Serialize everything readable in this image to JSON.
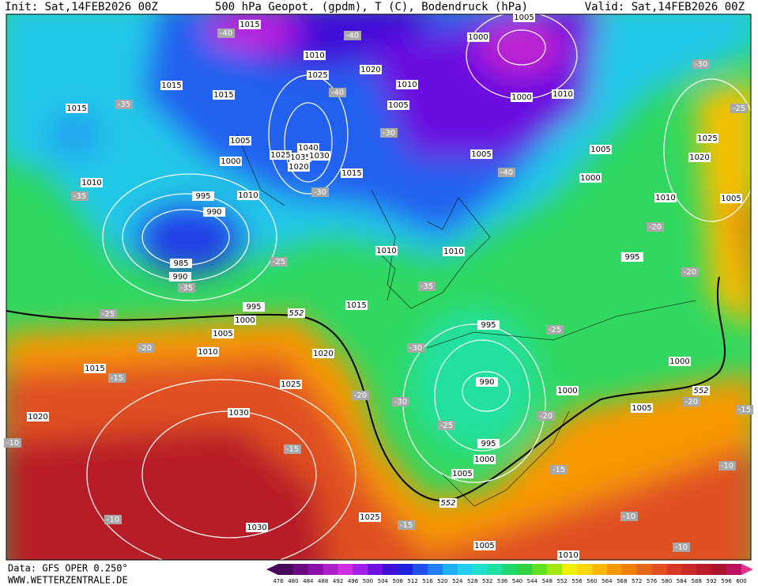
{
  "header": {
    "init": "Init: Sat,14FEB2026 00Z",
    "title": "500 hPa Geopot. (gpdm), T (C), Bodendruck (hPa)",
    "valid": "Valid: Sat,14FEB2026 00Z"
  },
  "footer": {
    "data": "Data: GFS OPER 0.250°",
    "site": "WWW.WETTERZENTRALE.DE"
  },
  "legend": {
    "labels": [
      476,
      480,
      484,
      488,
      492,
      496,
      500,
      504,
      508,
      512,
      516,
      520,
      524,
      528,
      532,
      536,
      540,
      544,
      548,
      552,
      556,
      560,
      564,
      568,
      572,
      576,
      580,
      584,
      588,
      592,
      596,
      600
    ],
    "colors": [
      "#4a0a5a",
      "#6a0a80",
      "#8a10a8",
      "#b020c8",
      "#d030e0",
      "#a020e8",
      "#7010e0",
      "#4010d8",
      "#2020e0",
      "#2050f0",
      "#2080f8",
      "#20b0f8",
      "#20d0f0",
      "#20e0d0",
      "#20e0a0",
      "#20d870",
      "#30d040",
      "#60e020",
      "#a0e810",
      "#f0f000",
      "#f8d800",
      "#f8b800",
      "#f89800",
      "#f08000",
      "#e86818",
      "#e05020",
      "#d83828",
      "#c82828",
      "#b81c28",
      "#a81428",
      "#c01060",
      "#e03090"
    ]
  },
  "pressure_labels": [
    1015,
    1010,
    1020,
    1025,
    1010,
    1000,
    1005,
    1000,
    1010,
    1015,
    1015,
    1015,
    1005,
    1005,
    1000,
    1040,
    1035,
    1030,
    1020,
    1025,
    1015,
    1005,
    1005,
    1000,
    1025,
    1020,
    1010,
    1010,
    995,
    990,
    1010,
    1005,
    1010,
    1010,
    985,
    990,
    995,
    1015,
    995,
    1000,
    1005,
    995,
    1010,
    1020,
    1000,
    1015,
    990,
    1025,
    1000,
    1005,
    1030,
    1020,
    995,
    1000,
    1005,
    1025,
    1030,
    1005,
    1010
  ],
  "temperature_labels": [
    -40,
    -40,
    -40,
    -40,
    -35,
    -35,
    -35,
    -35,
    -30,
    -30,
    -30,
    -30,
    -30,
    -25,
    -25,
    -25,
    -25,
    -25,
    -20,
    -20,
    -20,
    -20,
    -20,
    -20,
    -15,
    -15,
    -15,
    -15,
    -10,
    -10,
    -10,
    -10,
    -10,
    -15
  ],
  "height_labels": [
    552,
    552,
    552
  ]
}
